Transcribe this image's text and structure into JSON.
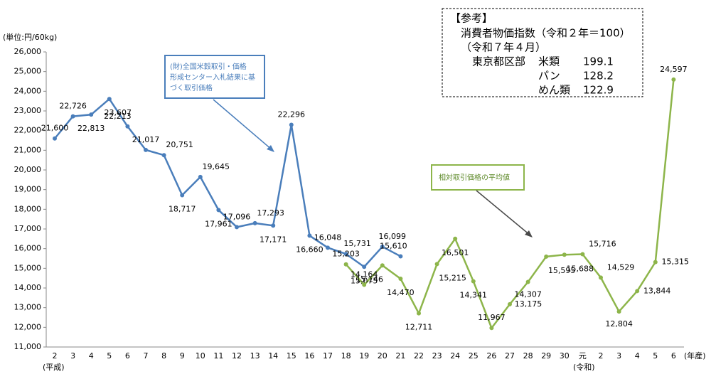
{
  "chart_data": {
    "type": "line",
    "unit_label": "(単位:円/60kg)",
    "categories": [
      "2",
      "3",
      "4",
      "5",
      "6",
      "7",
      "8",
      "9",
      "10",
      "11",
      "12",
      "13",
      "14",
      "15",
      "16",
      "17",
      "18",
      "19",
      "20",
      "21",
      "22",
      "23",
      "24",
      "25",
      "26",
      "27",
      "28",
      "29",
      "30",
      "元",
      "2",
      "3",
      "4",
      "5",
      "6"
    ],
    "era_labels": [
      "(平成)",
      "(令和)"
    ],
    "x_axis_label": "(年産)",
    "ylim": [
      11000,
      26000
    ],
    "yticks": [
      {
        "value": 11000,
        "label": "11,000"
      },
      {
        "value": 12000,
        "label": "12,000"
      },
      {
        "value": 13000,
        "label": "13,000"
      },
      {
        "value": 14000,
        "label": "14,000"
      },
      {
        "value": 15000,
        "label": "15,000"
      },
      {
        "value": 16000,
        "label": "16,000"
      },
      {
        "value": 17000,
        "label": "17,000"
      },
      {
        "value": 18000,
        "label": "18,000"
      },
      {
        "value": 19000,
        "label": "19,000"
      },
      {
        "value": 20000,
        "label": "20,000"
      },
      {
        "value": 21000,
        "label": "21,000"
      },
      {
        "value": 22000,
        "label": "22,000"
      },
      {
        "value": 23000,
        "label": "23,000"
      },
      {
        "value": 24000,
        "label": "24,000"
      },
      {
        "value": 25000,
        "label": "25,000"
      },
      {
        "value": 26000,
        "label": "26,000"
      }
    ],
    "series": [
      {
        "name": "(財)全国米穀取引・価格形成センター入札結果に基づく取引価格",
        "color": "#4a7ebb",
        "values": [
          21600,
          22726,
          22813,
          23607,
          22213,
          21017,
          20751,
          18717,
          19645,
          17961,
          17096,
          17293,
          17171,
          22296,
          16660,
          16048,
          15731,
          15075,
          16099,
          15610,
          null,
          null,
          null,
          null,
          null,
          null,
          null,
          null,
          null,
          null,
          null,
          null,
          null,
          null,
          null
        ],
        "value_labels": [
          "21,600",
          "22,726",
          "22,813",
          "23,607",
          "22,213",
          "21,017",
          "20,751",
          "18,717",
          "19,645",
          "17,961",
          "17,096",
          "17,293",
          "17,171",
          "22,296",
          "16,660",
          "16,048",
          "15,731",
          "15,075",
          "16,099",
          "15,610",
          null,
          null,
          null,
          null,
          null,
          null,
          null,
          null,
          null,
          null,
          null,
          null,
          null,
          null,
          null
        ]
      },
      {
        "name": "相対取引価格の平均値",
        "color": "#8db54a",
        "values": [
          null,
          null,
          null,
          null,
          null,
          null,
          null,
          null,
          null,
          null,
          null,
          null,
          null,
          null,
          null,
          null,
          15203,
          14164,
          15146,
          14470,
          12711,
          15215,
          16501,
          14341,
          11967,
          13175,
          14307,
          15595,
          15688,
          15716,
          14529,
          12804,
          13844,
          15315,
          24597
        ],
        "value_labels": [
          null,
          null,
          null,
          null,
          null,
          null,
          null,
          null,
          null,
          null,
          null,
          null,
          null,
          null,
          null,
          null,
          "15,203",
          "14,164",
          "15,146",
          "14,470",
          "12,711",
          "15,215",
          "16,501",
          "14,341",
          "11,967",
          "13,175",
          "14,307",
          "15,595",
          "15,688",
          "15,716",
          "14,529",
          "12,804",
          "13,844",
          "15,315",
          "24,597"
        ]
      }
    ],
    "reference": {
      "title": "【参考】",
      "subtitle": "消費者物価指数（令和２年＝100）",
      "date": "（令和７年４月）",
      "region": "東京都区部",
      "rows": [
        [
          "米類",
          "199.1"
        ],
        [
          "パン",
          "128.2"
        ],
        [
          "めん類",
          "122.9"
        ]
      ]
    }
  }
}
